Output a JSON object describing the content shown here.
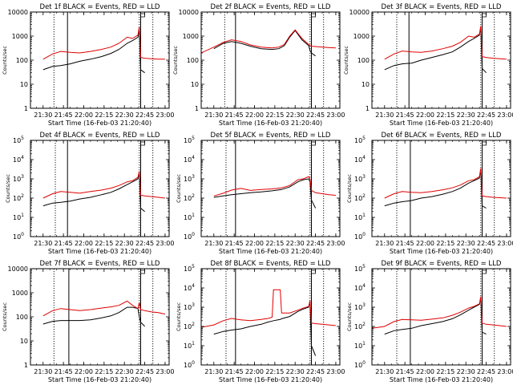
{
  "colors": {
    "events": "#000000",
    "lld": "#e00000",
    "axes": "#000000",
    "background": "#ffffff"
  },
  "x_axis": {
    "label": "Start Time (16-Feb-03 21:20:40)",
    "range": [
      "21:20:40",
      "23:03:00"
    ],
    "ticks": [
      "21:30",
      "21:45",
      "22:00",
      "22:15",
      "22:30",
      "22:45",
      "23:00"
    ]
  },
  "y_axis": {
    "label": "Counts/sec",
    "scale": "log"
  },
  "chart_data": [
    {
      "type": "line",
      "title": "Det 1f BLACK = Events, RED = LLD",
      "ylim": [
        1,
        10000
      ],
      "yticks": [
        1,
        10,
        100,
        1000,
        10000
      ],
      "tick_style": "plain",
      "x": [
        "21:30",
        "21:37",
        "21:43",
        "21:50",
        "21:57",
        "22:05",
        "22:13",
        "22:20",
        "22:26",
        "22:32",
        "22:36",
        "22:40",
        "22:41",
        "22:42",
        "22:45",
        "22:50",
        "22:55",
        "23:00"
      ],
      "series": [
        {
          "name": "Events",
          "values": [
            40,
            55,
            60,
            70,
            90,
            110,
            140,
            190,
            280,
            500,
            650,
            900,
            1800,
            40,
            30,
            null,
            null,
            null
          ]
        },
        {
          "name": "LLD",
          "values": [
            110,
            180,
            230,
            210,
            200,
            230,
            280,
            350,
            500,
            900,
            800,
            1100,
            2500,
            130,
            120,
            115,
            110,
            110
          ]
        }
      ]
    },
    {
      "type": "line",
      "title": "Det 2f BLACK = Events, RED = LLD",
      "ylim": [
        1,
        10000
      ],
      "yticks": [
        1,
        10,
        100,
        1000,
        10000
      ],
      "tick_style": "plain",
      "x": [
        "21:20:40",
        "21:30",
        "21:37",
        "21:43",
        "21:50",
        "21:57",
        "22:05",
        "22:13",
        "22:18",
        "22:22",
        "22:26",
        "22:30",
        "22:35",
        "22:40",
        "22:41",
        "22:42",
        "22:45",
        "22:50",
        "22:55",
        "23:00"
      ],
      "series": [
        {
          "name": "Events",
          "values": [
            null,
            300,
            500,
            600,
            500,
            380,
            300,
            280,
            300,
            400,
            900,
            1700,
            700,
            400,
            250,
            200,
            150,
            null,
            null,
            null
          ]
        },
        {
          "name": "LLD",
          "values": [
            200,
            350,
            550,
            700,
            600,
            430,
            350,
            320,
            350,
            450,
            1000,
            1800,
            800,
            450,
            400,
            380,
            370,
            350,
            330,
            320
          ]
        }
      ]
    },
    {
      "type": "line",
      "title": "Det 3f BLACK = Events, RED = LLD",
      "ylim": [
        1,
        10000
      ],
      "yticks": [
        1,
        10,
        100,
        1000,
        10000
      ],
      "tick_style": "plain",
      "x": [
        "21:30",
        "21:37",
        "21:43",
        "21:50",
        "21:57",
        "22:05",
        "22:13",
        "22:20",
        "22:26",
        "22:32",
        "22:36",
        "22:40",
        "22:41",
        "22:42",
        "22:45",
        "22:50",
        "22:55",
        "23:00"
      ],
      "series": [
        {
          "name": "Events",
          "values": [
            40,
            60,
            70,
            75,
            100,
            130,
            170,
            220,
            350,
            600,
            800,
            1100,
            2200,
            45,
            30,
            null,
            null,
            null
          ]
        },
        {
          "name": "LLD",
          "values": [
            110,
            180,
            240,
            220,
            210,
            240,
            300,
            380,
            550,
            1000,
            900,
            1200,
            2600,
            140,
            130,
            120,
            115,
            110
          ]
        }
      ]
    },
    {
      "type": "line",
      "title": "Det 4f BLACK = Events, RED = LLD",
      "ylim": [
        1,
        100000
      ],
      "yticks": [
        1,
        10,
        100,
        1000,
        10000,
        100000
      ],
      "tick_style": "power",
      "x": [
        "21:30",
        "21:37",
        "21:43",
        "21:50",
        "21:57",
        "22:05",
        "22:13",
        "22:20",
        "22:26",
        "22:32",
        "22:36",
        "22:40",
        "22:41",
        "22:42",
        "22:45",
        "22:50",
        "22:55",
        "23:00"
      ],
      "series": [
        {
          "name": "Events",
          "values": [
            40,
            55,
            60,
            70,
            90,
            110,
            150,
            200,
            300,
            500,
            700,
            1000,
            2000,
            30,
            20,
            null,
            null,
            null
          ]
        },
        {
          "name": "LLD",
          "values": [
            100,
            170,
            220,
            200,
            180,
            220,
            260,
            330,
            450,
            700,
            800,
            1200,
            2500,
            140,
            130,
            120,
            110,
            100
          ]
        }
      ]
    },
    {
      "type": "line",
      "title": "Det 5f BLACK = Events, RED = LLD",
      "ylim": [
        1,
        100000
      ],
      "yticks": [
        1,
        10,
        100,
        1000,
        10000,
        100000
      ],
      "tick_style": "power",
      "x": [
        "21:30",
        "21:37",
        "21:43",
        "21:50",
        "21:57",
        "22:05",
        "22:13",
        "22:20",
        "22:26",
        "22:32",
        "22:36",
        "22:40",
        "22:41",
        "22:42",
        "22:45",
        "22:50",
        "22:55",
        "23:00"
      ],
      "series": [
        {
          "name": "Events",
          "values": [
            110,
            130,
            150,
            170,
            190,
            210,
            240,
            280,
            380,
            700,
            900,
            1000,
            700,
            80,
            30,
            null,
            null,
            null
          ]
        },
        {
          "name": "LLD",
          "values": [
            130,
            180,
            260,
            320,
            250,
            280,
            300,
            340,
            450,
            900,
            1000,
            1300,
            1000,
            250,
            190,
            170,
            150,
            140
          ]
        }
      ]
    },
    {
      "type": "line",
      "title": "Det 6f BLACK = Events, RED = LLD",
      "ylim": [
        1,
        100000
      ],
      "yticks": [
        1,
        10,
        100,
        1000,
        10000,
        100000
      ],
      "tick_style": "power",
      "x": [
        "21:30",
        "21:37",
        "21:43",
        "21:50",
        "21:57",
        "22:05",
        "22:13",
        "22:20",
        "22:26",
        "22:32",
        "22:36",
        "22:40",
        "22:41",
        "22:42",
        "22:45",
        "22:50",
        "22:55",
        "23:00"
      ],
      "series": [
        {
          "name": "Events",
          "values": [
            40,
            55,
            65,
            75,
            100,
            120,
            160,
            220,
            330,
            600,
            800,
            1100,
            3000,
            40,
            30,
            null,
            null,
            null
          ]
        },
        {
          "name": "LLD",
          "values": [
            100,
            170,
            220,
            200,
            190,
            220,
            270,
            340,
            480,
            800,
            900,
            1300,
            3500,
            130,
            120,
            110,
            105,
            100
          ]
        }
      ]
    },
    {
      "type": "line",
      "title": "Det 7f BLACK = Events, RED = LLD",
      "ylim": [
        1,
        10000
      ],
      "yticks": [
        1,
        10,
        100,
        1000,
        10000
      ],
      "tick_style": "plain",
      "x": [
        "21:30",
        "21:37",
        "21:43",
        "21:50",
        "21:57",
        "22:05",
        "22:13",
        "22:20",
        "22:26",
        "22:32",
        "22:36",
        "22:40",
        "22:41",
        "22:42",
        "22:45",
        "22:50",
        "22:55",
        "23:00"
      ],
      "series": [
        {
          "name": "Events",
          "values": [
            50,
            65,
            70,
            70,
            70,
            75,
            90,
            110,
            150,
            250,
            250,
            220,
            100,
            60,
            40,
            null,
            null,
            null
          ]
        },
        {
          "name": "LLD",
          "values": [
            110,
            180,
            220,
            200,
            180,
            200,
            230,
            260,
            300,
            450,
            300,
            220,
            400,
            200,
            180,
            160,
            150,
            130
          ]
        }
      ]
    },
    {
      "type": "line",
      "title": "Det 8f BLACK = Events, RED = LLD",
      "ylim": [
        1,
        100000
      ],
      "yticks": [
        1,
        10,
        100,
        1000,
        10000,
        100000
      ],
      "tick_style": "power",
      "x": [
        "21:20:40",
        "21:30",
        "21:37",
        "21:43",
        "21:50",
        "21:57",
        "22:05",
        "22:10",
        "22:13",
        "22:14",
        "22:19",
        "22:20",
        "22:26",
        "22:32",
        "22:36",
        "22:40",
        "22:41",
        "22:42",
        "22:45",
        "22:50",
        "22:55",
        "23:00"
      ],
      "series": [
        {
          "name": "Events",
          "values": [
            null,
            40,
            55,
            65,
            75,
            100,
            130,
            170,
            190,
            200,
            230,
            250,
            330,
            600,
            800,
            1000,
            2000,
            10,
            3,
            null,
            null,
            null
          ]
        },
        {
          "name": "LLD",
          "values": [
            90,
            120,
            200,
            260,
            220,
            200,
            230,
            260,
            300,
            8000,
            8000,
            500,
            500,
            700,
            900,
            1100,
            2200,
            150,
            140,
            130,
            120,
            110
          ]
        }
      ]
    },
    {
      "type": "line",
      "title": "Det 9f BLACK = Events, RED = LLD",
      "ylim": [
        1,
        100000
      ],
      "yticks": [
        1,
        10,
        100,
        1000,
        10000,
        100000
      ],
      "tick_style": "power",
      "x": [
        "21:20:40",
        "21:30",
        "21:37",
        "21:43",
        "21:50",
        "21:57",
        "22:05",
        "22:13",
        "22:20",
        "22:26",
        "22:32",
        "22:36",
        "22:40",
        "22:41",
        "22:42",
        "22:45",
        "22:50",
        "22:55",
        "23:00"
      ],
      "series": [
        {
          "name": "Events",
          "values": [
            null,
            40,
            60,
            70,
            80,
            110,
            140,
            180,
            250,
            400,
            700,
            1000,
            1400,
            3000,
            50,
            40,
            null,
            null,
            null
          ]
        },
        {
          "name": "LLD",
          "values": [
            80,
            100,
            180,
            230,
            220,
            210,
            240,
            280,
            380,
            550,
            900,
            1100,
            1500,
            3500,
            150,
            130,
            120,
            110,
            100
          ]
        }
      ]
    }
  ]
}
